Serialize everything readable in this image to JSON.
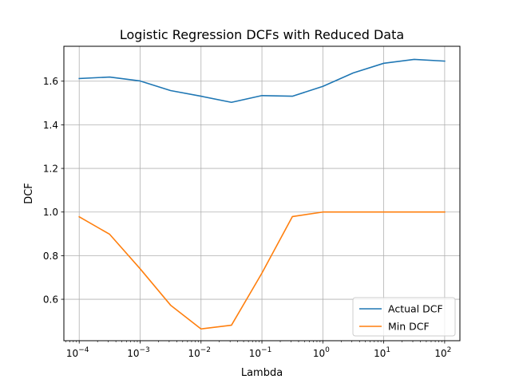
{
  "chart_data": {
    "type": "line",
    "title": "Logistic Regression DCFs with Reduced Data",
    "xlabel": "Lambda",
    "ylabel": "DCF",
    "xscale": "log",
    "xlim": [
      5.6e-05,
      178
    ],
    "ylim": [
      0.41,
      1.76
    ],
    "grid": true,
    "legend_position": "bottom-right",
    "xticks": [
      {
        "value": 0.0001,
        "base": "10",
        "exp": "−4"
      },
      {
        "value": 0.001,
        "base": "10",
        "exp": "−3"
      },
      {
        "value": 0.01,
        "base": "10",
        "exp": "−2"
      },
      {
        "value": 0.1,
        "base": "10",
        "exp": "−1"
      },
      {
        "value": 1,
        "base": "10",
        "exp": "0"
      },
      {
        "value": 10,
        "base": "10",
        "exp": "1"
      },
      {
        "value": 100,
        "base": "10",
        "exp": "2"
      }
    ],
    "yticks": [
      {
        "value": 0.6,
        "label": "0.6"
      },
      {
        "value": 0.8,
        "label": "0.8"
      },
      {
        "value": 1.0,
        "label": "1.0"
      },
      {
        "value": 1.2,
        "label": "1.2"
      },
      {
        "value": 1.4,
        "label": "1.4"
      },
      {
        "value": 1.6,
        "label": "1.6"
      }
    ],
    "x": [
      0.0001,
      0.000316,
      0.001,
      0.00316,
      0.01,
      0.0316,
      0.1,
      0.316,
      1,
      3.16,
      10,
      31.6,
      100
    ],
    "series": [
      {
        "name": "Actual DCF",
        "color": "#1f77b4",
        "values": [
          1.612,
          1.619,
          1.601,
          1.557,
          1.531,
          1.503,
          1.534,
          1.531,
          1.576,
          1.638,
          1.682,
          1.7,
          1.692
        ]
      },
      {
        "name": "Min DCF",
        "color": "#ff7f0e",
        "values": [
          0.978,
          0.898,
          0.74,
          0.573,
          0.464,
          0.481,
          0.72,
          0.979,
          1.0,
          1.0,
          1.0,
          1.0,
          1.0
        ]
      }
    ]
  }
}
